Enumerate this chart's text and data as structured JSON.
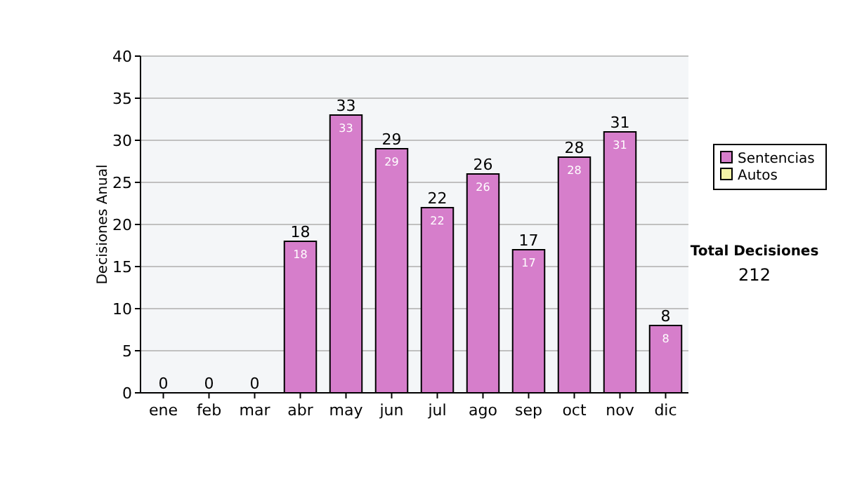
{
  "chart_data": {
    "type": "bar",
    "ylabel": "Decisiones Anual",
    "categories": [
      "ene",
      "feb",
      "mar",
      "abr",
      "may",
      "jun",
      "jul",
      "ago",
      "sep",
      "oct",
      "nov",
      "dic"
    ],
    "series": [
      {
        "name": "Sentencias",
        "color": "#d67ecb",
        "values": [
          0,
          0,
          0,
          18,
          33,
          29,
          22,
          26,
          17,
          28,
          31,
          8
        ],
        "value_labels": [
          null,
          null,
          null,
          "18",
          "33",
          "29",
          "22",
          "26",
          "17",
          "28",
          "31",
          "8"
        ]
      },
      {
        "name": "Autos",
        "color": "#f2f2a6",
        "values": [
          0,
          0,
          0,
          0,
          0,
          0,
          0,
          0,
          0,
          0,
          0,
          0
        ]
      }
    ],
    "totals": [
      "0",
      "0",
      "0",
      "18",
      "33",
      "29",
      "22",
      "26",
      "17",
      "28",
      "31",
      "8"
    ],
    "ylim": [
      0,
      40
    ],
    "yticks": [
      0,
      5,
      10,
      15,
      20,
      25,
      30,
      35,
      40
    ],
    "grid": "y",
    "legend": "right",
    "annotations": [
      "Total Decisiones",
      "212"
    ]
  }
}
